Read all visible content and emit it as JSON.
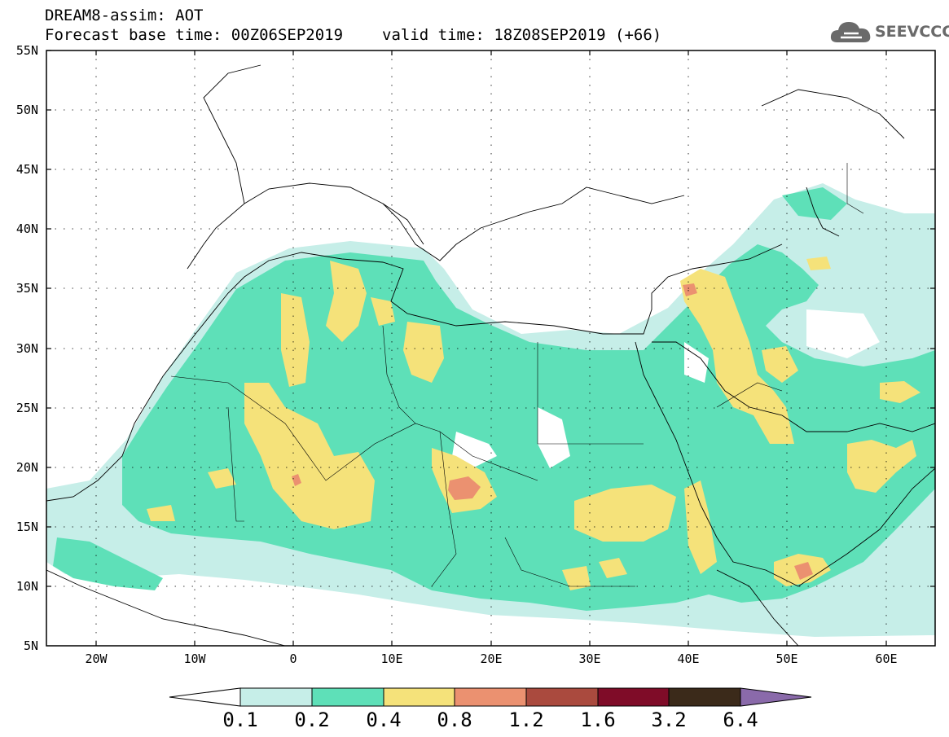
{
  "header": {
    "title": "DREAM8-assim: AOT",
    "forecast_base": "Forecast base time: 00Z06SEP2019",
    "valid_time": "valid time: 18Z08SEP2019 (+66)"
  },
  "logo": {
    "text": "SEEVCCC",
    "icon": "cloud-icon",
    "color": "#6a6a6a"
  },
  "map": {
    "lon_range": [
      -25,
      65
    ],
    "lat_range": [
      5,
      55
    ],
    "lat_ticks": [
      "55N",
      "50N",
      "45N",
      "40N",
      "35N",
      "30N",
      "25N",
      "20N",
      "15N",
      "10N",
      "5N"
    ],
    "lon_ticks": [
      "20W",
      "10W",
      "0",
      "10E",
      "20E",
      "30E",
      "40E",
      "50E",
      "60E"
    ]
  },
  "colorbar": {
    "labels": [
      "0.1",
      "0.2",
      "0.4",
      "0.8",
      "1.2",
      "1.6",
      "3.2",
      "6.4"
    ],
    "colors": [
      "#ffffff",
      "#c6eee8",
      "#5ee0b8",
      "#f5e27a",
      "#eb9170",
      "#aa4a3e",
      "#7f0c28",
      "#3b2a1a",
      "#8a6aaa"
    ]
  }
}
